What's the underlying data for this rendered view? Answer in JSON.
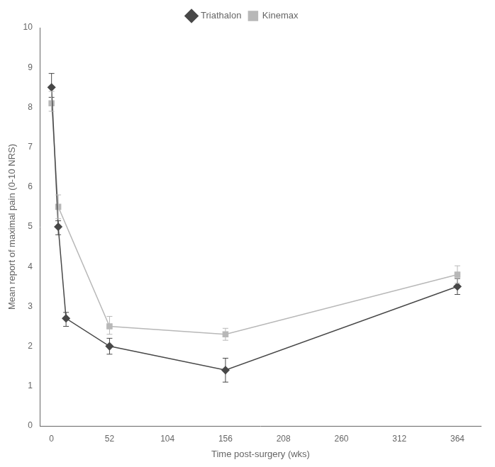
{
  "chart_data": {
    "type": "line",
    "xlabel": "Time post-surgery (wks)",
    "ylabel": "Mean report of maximal pain (0-10 NRS)",
    "xlim": [
      -10,
      385
    ],
    "ylim": [
      0,
      10
    ],
    "xticks": [
      0,
      52,
      104,
      156,
      208,
      260,
      312,
      364
    ],
    "yticks": [
      0,
      1,
      2,
      3,
      4,
      5,
      6,
      7,
      8,
      9,
      10
    ],
    "grid": false,
    "legend": "top",
    "series": [
      {
        "name": "Triathalon",
        "color": "#484848",
        "marker": "diamond",
        "x": [
          0,
          6,
          13,
          52,
          156,
          364
        ],
        "values": [
          8.5,
          5.0,
          2.7,
          2.0,
          1.4,
          3.5
        ],
        "yerr_lower": [
          0.25,
          0.2,
          0.2,
          0.2,
          0.3,
          0.2
        ],
        "yerr_upper": [
          0.35,
          0.15,
          0.15,
          0.2,
          0.3,
          0.2
        ]
      },
      {
        "name": "Kinemax",
        "color": "#b8b8b8",
        "marker": "square",
        "x": [
          0,
          6,
          52,
          156,
          364
        ],
        "values": [
          8.1,
          5.5,
          2.5,
          2.3,
          3.8
        ],
        "yerr_lower": [
          0.2,
          0.3,
          0.2,
          0.15,
          0.22
        ],
        "yerr_upper": [
          0.3,
          0.3,
          0.25,
          0.15,
          0.22
        ]
      }
    ]
  }
}
